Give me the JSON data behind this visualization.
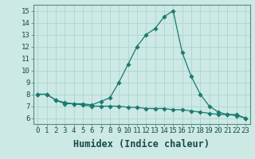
{
  "title": "",
  "xlabel": "Humidex (Indice chaleur)",
  "ylabel": "",
  "x": [
    0,
    1,
    2,
    3,
    4,
    5,
    6,
    7,
    8,
    9,
    10,
    11,
    12,
    13,
    14,
    15,
    16,
    17,
    18,
    19,
    20,
    21,
    22,
    23
  ],
  "line1": [
    8.0,
    8.0,
    7.5,
    7.2,
    7.2,
    7.2,
    7.1,
    7.4,
    7.7,
    9.0,
    10.5,
    12.0,
    13.0,
    13.5,
    14.5,
    15.0,
    11.5,
    9.5,
    8.0,
    7.0,
    6.5,
    6.3,
    6.3,
    6.0
  ],
  "line2": [
    8.0,
    8.0,
    7.5,
    7.3,
    7.2,
    7.1,
    7.0,
    7.0,
    7.0,
    7.0,
    6.9,
    6.9,
    6.8,
    6.8,
    6.8,
    6.7,
    6.7,
    6.6,
    6.5,
    6.4,
    6.3,
    6.3,
    6.2,
    6.0
  ],
  "line_color": "#1a7a6e",
  "bg_color": "#cce9e5",
  "grid_color": "#aed4cf",
  "marker": "D",
  "xlim": [
    -0.5,
    23.5
  ],
  "ylim": [
    5.5,
    15.5
  ],
  "yticks": [
    6,
    7,
    8,
    9,
    10,
    11,
    12,
    13,
    14,
    15
  ],
  "xticks": [
    0,
    1,
    2,
    3,
    4,
    5,
    6,
    7,
    8,
    9,
    10,
    11,
    12,
    13,
    14,
    15,
    16,
    17,
    18,
    19,
    20,
    21,
    22,
    23
  ],
  "tick_fontsize": 6.5,
  "label_fontsize": 8.5
}
